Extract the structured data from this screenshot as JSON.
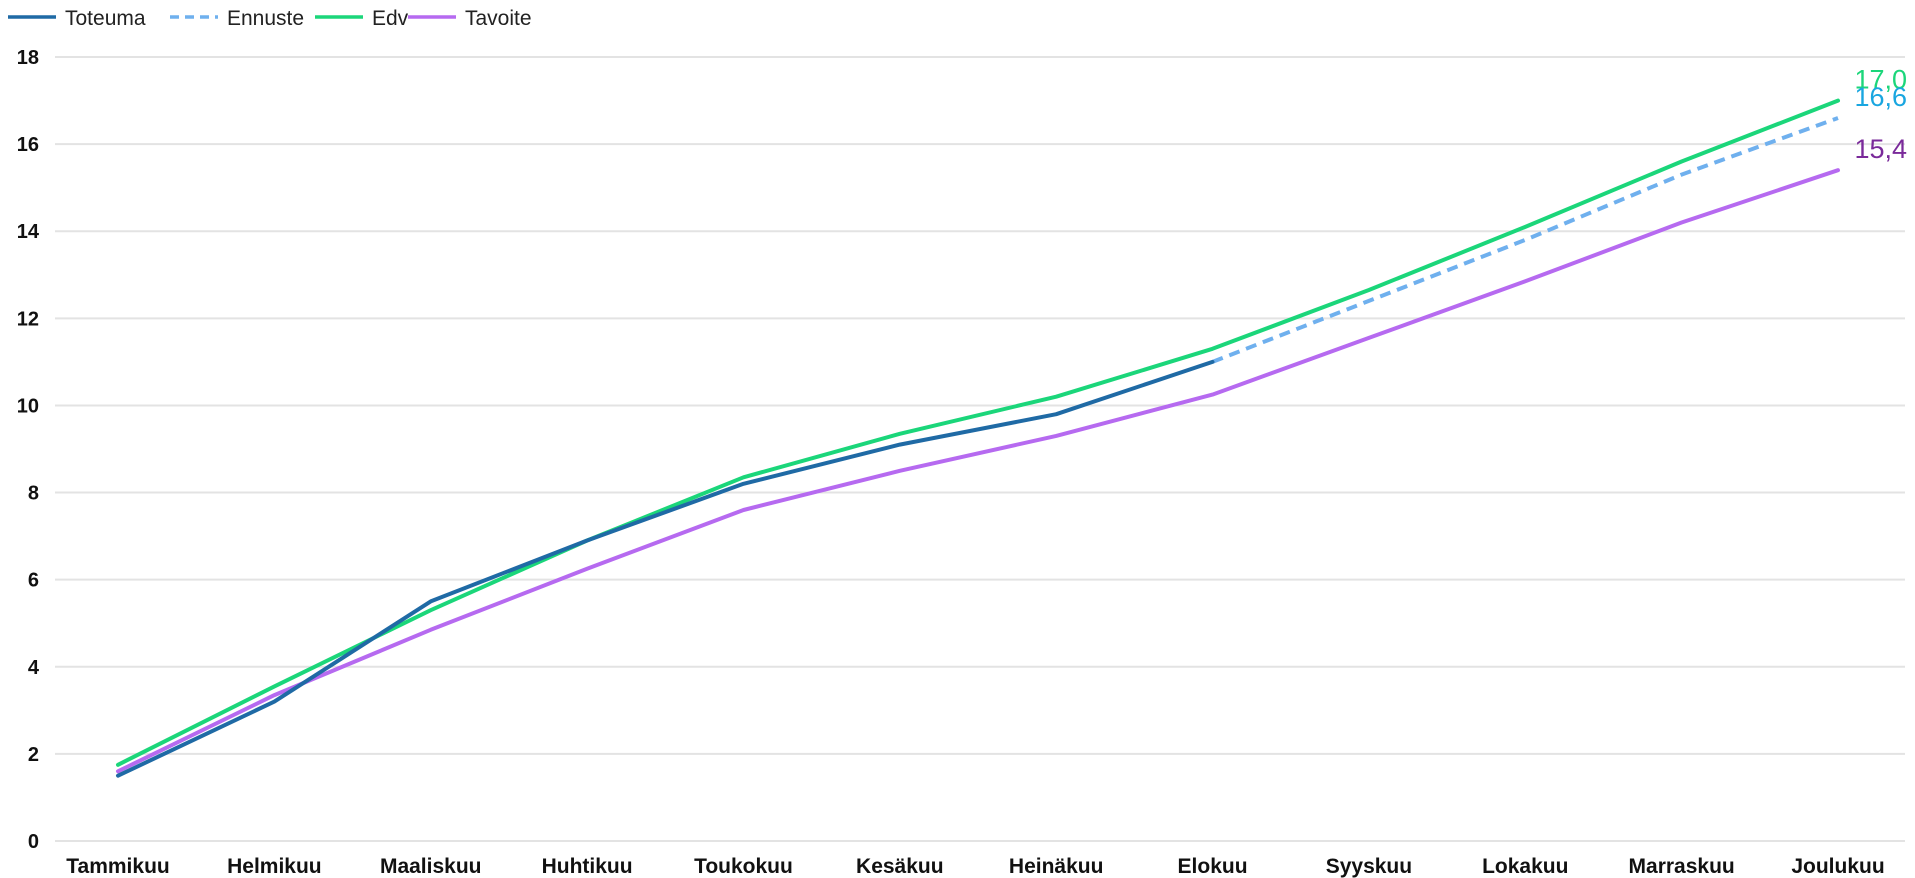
{
  "chart_data": {
    "type": "line",
    "categories": [
      "Tammikuu",
      "Helmikuu",
      "Maaliskuu",
      "Huhtikuu",
      "Toukokuu",
      "Kesäkuu",
      "Heinäkuu",
      "Elokuu",
      "Syyskuu",
      "Lokakuu",
      "Marraskuu",
      "Joulukuu"
    ],
    "ylim": [
      0,
      18
    ],
    "yticks": [
      0,
      2,
      4,
      6,
      8,
      10,
      12,
      14,
      16,
      18
    ],
    "grid": true,
    "legend_position": "top-left",
    "series": [
      {
        "name": "Toteuma",
        "color": "#1f6aa5",
        "dash": false,
        "values": [
          1.5,
          3.2,
          5.5,
          6.9,
          8.2,
          9.1,
          9.8,
          11.0,
          null,
          null,
          null,
          null
        ]
      },
      {
        "name": "Ennuste",
        "color": "#6fb0ee",
        "dash": true,
        "values": [
          null,
          null,
          null,
          null,
          null,
          null,
          null,
          11.0,
          12.4,
          13.8,
          15.3,
          16.6
        ]
      },
      {
        "name": "Edv",
        "color": "#1bd67a",
        "dash": false,
        "values": [
          1.75,
          3.55,
          5.3,
          6.9,
          8.35,
          9.35,
          10.2,
          11.3,
          12.65,
          14.1,
          15.6,
          17.0
        ]
      },
      {
        "name": "Tavoite",
        "color": "#b66af0",
        "dash": false,
        "values": [
          1.6,
          3.35,
          4.85,
          6.25,
          7.6,
          8.5,
          9.3,
          10.25,
          11.55,
          12.85,
          14.2,
          15.4
        ]
      }
    ],
    "end_labels": [
      {
        "text": "17,0",
        "value": 17.0,
        "color": "#1bd67a"
      },
      {
        "text": "16,6",
        "value": 16.6,
        "color": "#19a6e0"
      },
      {
        "text": "15,4",
        "value": 15.4,
        "color": "#7a2a9a"
      }
    ]
  }
}
